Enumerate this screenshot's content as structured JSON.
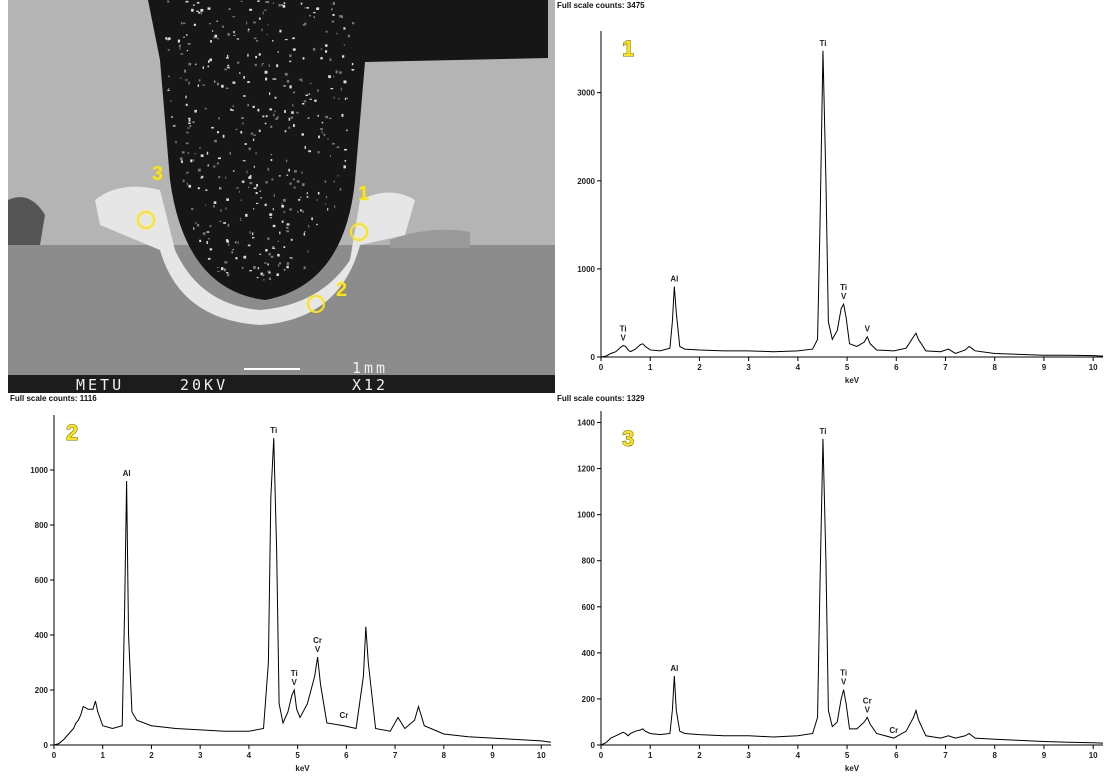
{
  "image": {
    "labels": [
      "METU",
      "20KV",
      "1mm",
      "X12"
    ],
    "points": [
      "1",
      "2",
      "3"
    ]
  },
  "chart_data": [
    {
      "type": "line",
      "title": "Full scale counts: 3475",
      "marker": "1",
      "xlabel": "keV",
      "color": "#000000",
      "x": [
        0,
        0.1,
        0.2,
        0.3,
        0.4,
        0.45,
        0.5,
        0.55,
        0.6,
        0.7,
        0.8,
        0.85,
        0.9,
        1.0,
        1.2,
        1.4,
        1.45,
        1.49,
        1.53,
        1.6,
        1.7,
        2,
        2.5,
        3,
        3.5,
        4,
        4.3,
        4.4,
        4.45,
        4.51,
        4.57,
        4.62,
        4.7,
        4.8,
        4.88,
        4.93,
        4.98,
        5.05,
        5.2,
        5.35,
        5.41,
        5.47,
        5.6,
        5.95,
        6.2,
        6.35,
        6.4,
        6.45,
        6.6,
        6.9,
        7.06,
        7.2,
        7.4,
        7.48,
        7.6,
        8,
        8.5,
        9,
        9.5,
        10,
        10.2
      ],
      "values": [
        0,
        10,
        40,
        60,
        110,
        130,
        120,
        80,
        60,
        90,
        140,
        150,
        120,
        80,
        70,
        100,
        400,
        800,
        500,
        120,
        90,
        80,
        70,
        70,
        60,
        70,
        90,
        200,
        1500,
        3475,
        2000,
        400,
        200,
        300,
        550,
        600,
        450,
        150,
        120,
        170,
        230,
        150,
        80,
        70,
        100,
        230,
        270,
        200,
        70,
        60,
        90,
        40,
        80,
        120,
        70,
        40,
        30,
        20,
        20,
        15,
        10
      ],
      "xlim": [
        0,
        10.2
      ],
      "ylim": [
        0,
        3700
      ],
      "xticks": [
        0,
        1,
        2,
        3,
        4,
        5,
        6,
        7,
        8,
        9,
        10
      ],
      "yticks": [
        0,
        1000,
        2000,
        3000
      ],
      "annotations": [
        {
          "lines": [
            "Ti",
            "V"
          ],
          "x": 0.45,
          "y": 130
        },
        {
          "lines": [
            "Al"
          ],
          "x": 1.49,
          "y": 800
        },
        {
          "lines": [
            "Ti"
          ],
          "x": 4.51,
          "y": 3475
        },
        {
          "lines": [
            "Ti",
            "V"
          ],
          "x": 4.93,
          "y": 600
        },
        {
          "lines": [
            "V"
          ],
          "x": 5.41,
          "y": 230
        }
      ]
    },
    {
      "type": "line",
      "title": "Full scale counts: 1116",
      "marker": "2",
      "xlabel": "keV",
      "color": "#000000",
      "x": [
        0,
        0.1,
        0.2,
        0.3,
        0.4,
        0.45,
        0.5,
        0.55,
        0.6,
        0.7,
        0.8,
        0.85,
        0.9,
        1.0,
        1.2,
        1.4,
        1.45,
        1.49,
        1.53,
        1.6,
        1.7,
        2,
        2.5,
        3,
        3.5,
        4,
        4.3,
        4.4,
        4.45,
        4.51,
        4.57,
        4.62,
        4.7,
        4.8,
        4.88,
        4.93,
        4.98,
        5.05,
        5.2,
        5.35,
        5.41,
        5.47,
        5.6,
        5.95,
        6.2,
        6.35,
        6.4,
        6.45,
        6.6,
        6.9,
        7.06,
        7.2,
        7.4,
        7.48,
        7.6,
        8,
        8.5,
        9,
        9.5,
        10,
        10.2
      ],
      "values": [
        0,
        5,
        20,
        40,
        60,
        80,
        90,
        110,
        140,
        130,
        130,
        160,
        120,
        70,
        60,
        70,
        500,
        960,
        400,
        120,
        90,
        70,
        60,
        55,
        50,
        50,
        60,
        300,
        900,
        1116,
        700,
        150,
        80,
        120,
        180,
        200,
        130,
        100,
        150,
        250,
        320,
        220,
        80,
        70,
        60,
        250,
        430,
        300,
        60,
        50,
        100,
        60,
        90,
        140,
        70,
        40,
        30,
        25,
        20,
        15,
        10
      ],
      "xlim": [
        0,
        10.2
      ],
      "ylim": [
        0,
        1200
      ],
      "xticks": [
        0,
        1,
        2,
        3,
        4,
        5,
        6,
        7,
        8,
        9,
        10
      ],
      "yticks": [
        0,
        200,
        400,
        600,
        800,
        1000
      ],
      "annotations": [
        {
          "lines": [
            "Al"
          ],
          "x": 1.49,
          "y": 960
        },
        {
          "lines": [
            "Ti"
          ],
          "x": 4.51,
          "y": 1116
        },
        {
          "lines": [
            "Ti",
            "V"
          ],
          "x": 4.93,
          "y": 200
        },
        {
          "lines": [
            "Cr",
            "V"
          ],
          "x": 5.41,
          "y": 320
        },
        {
          "lines": [
            "Cr"
          ],
          "x": 5.95,
          "y": 80
        }
      ]
    },
    {
      "type": "line",
      "title": "Full scale counts: 1329",
      "marker": "3",
      "xlabel": "keV",
      "color": "#000000",
      "x": [
        0,
        0.1,
        0.2,
        0.3,
        0.4,
        0.45,
        0.5,
        0.55,
        0.6,
        0.7,
        0.8,
        0.85,
        0.9,
        1.0,
        1.2,
        1.4,
        1.45,
        1.49,
        1.53,
        1.6,
        1.7,
        2,
        2.5,
        3,
        3.5,
        4,
        4.3,
        4.4,
        4.45,
        4.51,
        4.57,
        4.62,
        4.7,
        4.8,
        4.88,
        4.93,
        4.98,
        5.05,
        5.2,
        5.35,
        5.41,
        5.47,
        5.6,
        5.95,
        6.2,
        6.35,
        6.4,
        6.45,
        6.6,
        6.9,
        7.06,
        7.2,
        7.4,
        7.48,
        7.6,
        8,
        8.5,
        9,
        9.5,
        10,
        10.2
      ],
      "values": [
        0,
        10,
        30,
        40,
        50,
        55,
        50,
        40,
        50,
        60,
        65,
        70,
        60,
        50,
        45,
        50,
        150,
        300,
        150,
        60,
        50,
        45,
        40,
        40,
        35,
        40,
        50,
        120,
        700,
        1329,
        800,
        150,
        80,
        100,
        200,
        240,
        180,
        70,
        70,
        100,
        120,
        90,
        50,
        30,
        60,
        120,
        150,
        110,
        40,
        30,
        40,
        30,
        40,
        50,
        30,
        25,
        20,
        15,
        12,
        10,
        8
      ],
      "xlim": [
        0,
        10.2
      ],
      "ylim": [
        0,
        1450
      ],
      "xticks": [
        0,
        1,
        2,
        3,
        4,
        5,
        6,
        7,
        8,
        9,
        10
      ],
      "yticks": [
        0,
        200,
        400,
        600,
        800,
        1000,
        1200,
        1400
      ],
      "annotations": [
        {
          "lines": [
            "Al"
          ],
          "x": 1.49,
          "y": 300
        },
        {
          "lines": [
            "Ti"
          ],
          "x": 4.51,
          "y": 1329
        },
        {
          "lines": [
            "Ti",
            "V"
          ],
          "x": 4.93,
          "y": 240
        },
        {
          "lines": [
            "Cr",
            "V"
          ],
          "x": 5.41,
          "y": 120
        },
        {
          "lines": [
            "Cr"
          ],
          "x": 5.95,
          "y": 30
        }
      ]
    }
  ]
}
